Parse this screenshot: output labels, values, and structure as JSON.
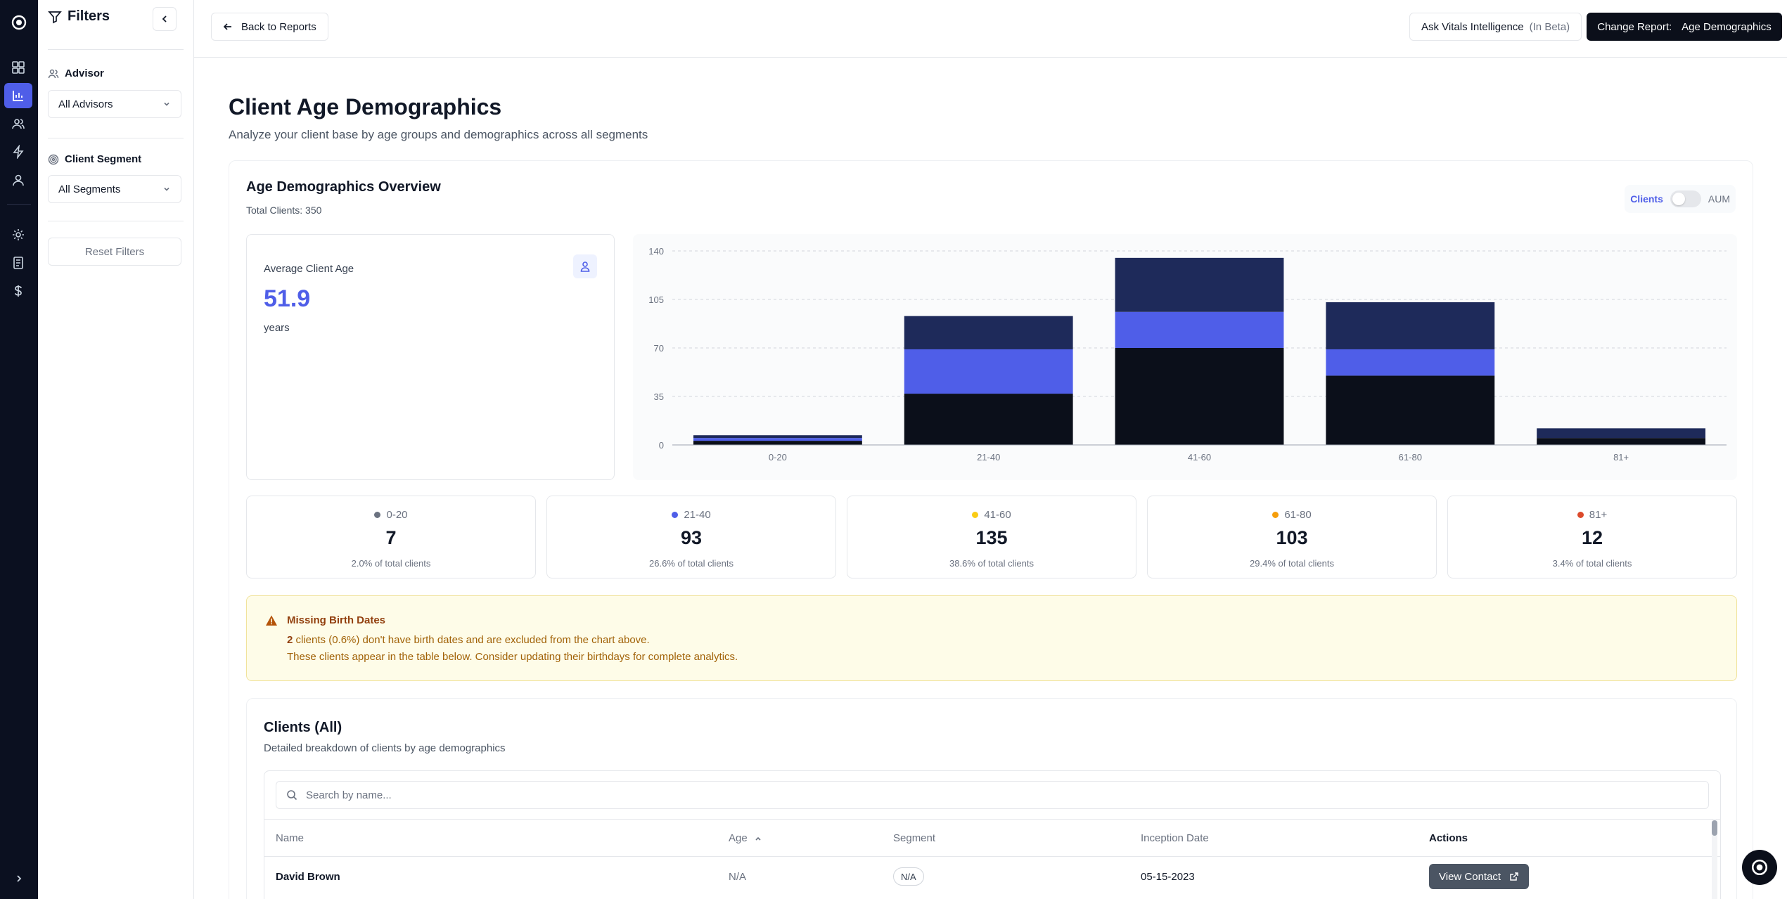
{
  "colors": {
    "accent": "#4f5ee8",
    "bar_dark": "#0b0f1a",
    "bar_mid": "#1e2a5a",
    "bar_accent": "#4f5ee8",
    "dot_0_20": "#6b7280",
    "dot_21_40": "#4f5ee8",
    "dot_41_60": "#facc15",
    "dot_61_80": "#f59e0b",
    "dot_81_plus": "#dc4a2b"
  },
  "rail": {
    "items": [
      {
        "name": "dashboard-icon"
      },
      {
        "name": "chart-icon"
      },
      {
        "name": "users-icon"
      },
      {
        "name": "lightning-icon"
      },
      {
        "name": "user-icon"
      },
      {
        "name": "gear-icon"
      },
      {
        "name": "ledger-icon"
      },
      {
        "name": "dollar-icon"
      }
    ]
  },
  "filters": {
    "title": "Filters",
    "advisor_label": "Advisor",
    "advisor_value": "All Advisors",
    "segment_label": "Client Segment",
    "segment_value": "All Segments",
    "reset_label": "Reset Filters"
  },
  "topbar": {
    "back_label": "Back to Reports",
    "ask_label": "Ask Vitals Intelligence",
    "ask_beta": "(In Beta)",
    "change_label": "Change Report:",
    "change_value": "Age Demographics"
  },
  "page": {
    "title": "Client Age Demographics",
    "subtitle": "Analyze your client base by age groups and demographics across all segments"
  },
  "overview": {
    "title": "Age Demographics Overview",
    "total": "Total Clients: 350",
    "toggle_left": "Clients",
    "toggle_right": "AUM",
    "avg_label": "Average Client Age",
    "avg_value": "51.9",
    "avg_unit": "years"
  },
  "chart_data": {
    "type": "bar",
    "stacked": true,
    "categories": [
      "0-20",
      "21-40",
      "41-60",
      "61-80",
      "81+"
    ],
    "series": [
      {
        "values": [
          3,
          37,
          70,
          50,
          5
        ]
      },
      {
        "values": [
          2,
          32,
          26,
          19,
          0
        ]
      },
      {
        "values": [
          2,
          24,
          39,
          34,
          7
        ]
      }
    ],
    "ylim": [
      0,
      140
    ],
    "yticks": [
      "0",
      "35",
      "70",
      "105",
      "140"
    ],
    "grid": true
  },
  "stats": [
    {
      "label": "0-20",
      "count": "7",
      "pct": "2.0% of total clients"
    },
    {
      "label": "21-40",
      "count": "93",
      "pct": "26.6% of total clients"
    },
    {
      "label": "41-60",
      "count": "135",
      "pct": "38.6% of total clients"
    },
    {
      "label": "61-80",
      "count": "103",
      "pct": "29.4% of total clients"
    },
    {
      "label": "81+",
      "count": "12",
      "pct": "3.4% of total clients"
    }
  ],
  "warning": {
    "title": "Missing Birth Dates",
    "count": "2",
    "line1_rest": "clients (0.6%) don't have birth dates and are excluded from the chart above.",
    "line2": "These clients appear in the table below. Consider updating their birthdays for complete analytics."
  },
  "clients": {
    "title": "Clients (All)",
    "subtitle": "Detailed breakdown of clients by age demographics",
    "search_placeholder": "Search by name...",
    "columns": {
      "name": "Name",
      "age": "Age",
      "segment": "Segment",
      "inception": "Inception Date",
      "actions": "Actions"
    },
    "rows": [
      {
        "name": "David Brown",
        "age": "N/A",
        "segment": "N/A",
        "inception": "05-15-2023",
        "action": "View Contact"
      }
    ]
  }
}
